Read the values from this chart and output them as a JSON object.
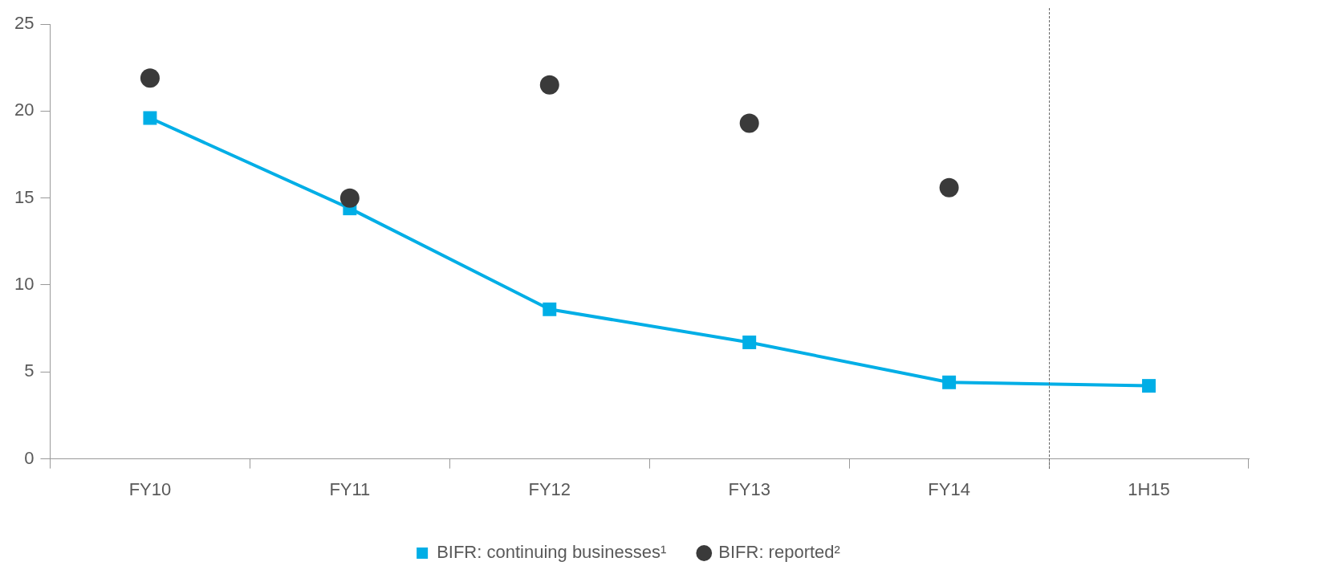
{
  "chart_data": {
    "type": "line",
    "categories": [
      "FY10",
      "FY11",
      "FY12",
      "FY13",
      "FY14",
      "1H15"
    ],
    "series": [
      {
        "name": "BIFR: continuing businesses¹",
        "marker": "square",
        "color": "#00aee6",
        "values": [
          19.6,
          14.4,
          8.6,
          6.7,
          4.4,
          4.2
        ]
      },
      {
        "name": "BIFR: reported²",
        "type": "scatter",
        "marker": "circle",
        "color": "#3a3a3a",
        "values": [
          21.9,
          15.0,
          21.5,
          19.3,
          15.6,
          null
        ]
      }
    ],
    "ylim": [
      0,
      25
    ],
    "yticks": [
      0,
      5,
      10,
      15,
      20,
      25
    ],
    "grid": false,
    "legend": "bottom"
  }
}
